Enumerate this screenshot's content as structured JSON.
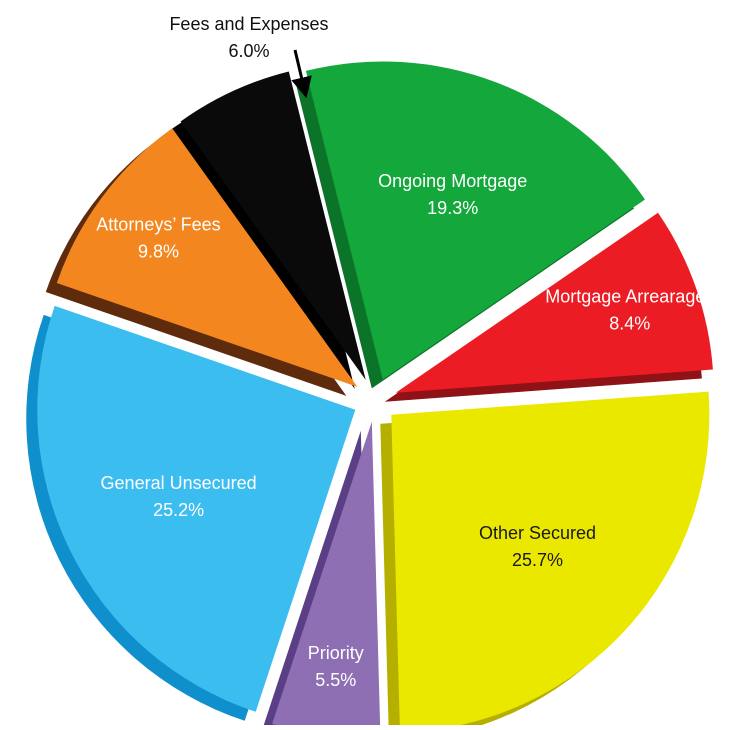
{
  "chart_data": {
    "type": "pie",
    "title": "",
    "slices": [
      {
        "label": "Ongoing Mortgage",
        "value": 19.3,
        "value_label": "19.3%",
        "color": "#14a83c",
        "side_color": "#0c7428",
        "label_color": "#ffffff"
      },
      {
        "label": "Mortgage Arrearages",
        "value": 8.4,
        "value_label": "8.4%",
        "color": "#ec1c24",
        "side_color": "#8e1216",
        "label_color": "#ffffff"
      },
      {
        "label": "Other Secured",
        "value": 25.7,
        "value_label": "25.7%",
        "color": "#ebe800",
        "side_color": "#b5b000",
        "label_color": "#1a1a1a"
      },
      {
        "label": "Priority",
        "value": 5.5,
        "value_label": "5.5%",
        "color": "#8e6fb4",
        "side_color": "#5a3f86",
        "label_color": "#ffffff"
      },
      {
        "label": "General Unsecured",
        "value": 25.2,
        "value_label": "25.2%",
        "color": "#3cbdf0",
        "side_color": "#0f8fcc",
        "label_color": "#ffffff"
      },
      {
        "label": "Attorneys’ Fees",
        "value": 9.8,
        "value_label": "9.8%",
        "color": "#f3861f",
        "side_color": "#5e2c0c",
        "label_color": "#ffffff"
      },
      {
        "label": "Fees and Expenses",
        "value": 6.0,
        "value_label": "6.0%",
        "color": "#0a0a0a",
        "side_color": "#000000",
        "label_color": "#111111",
        "callout": true
      }
    ]
  }
}
